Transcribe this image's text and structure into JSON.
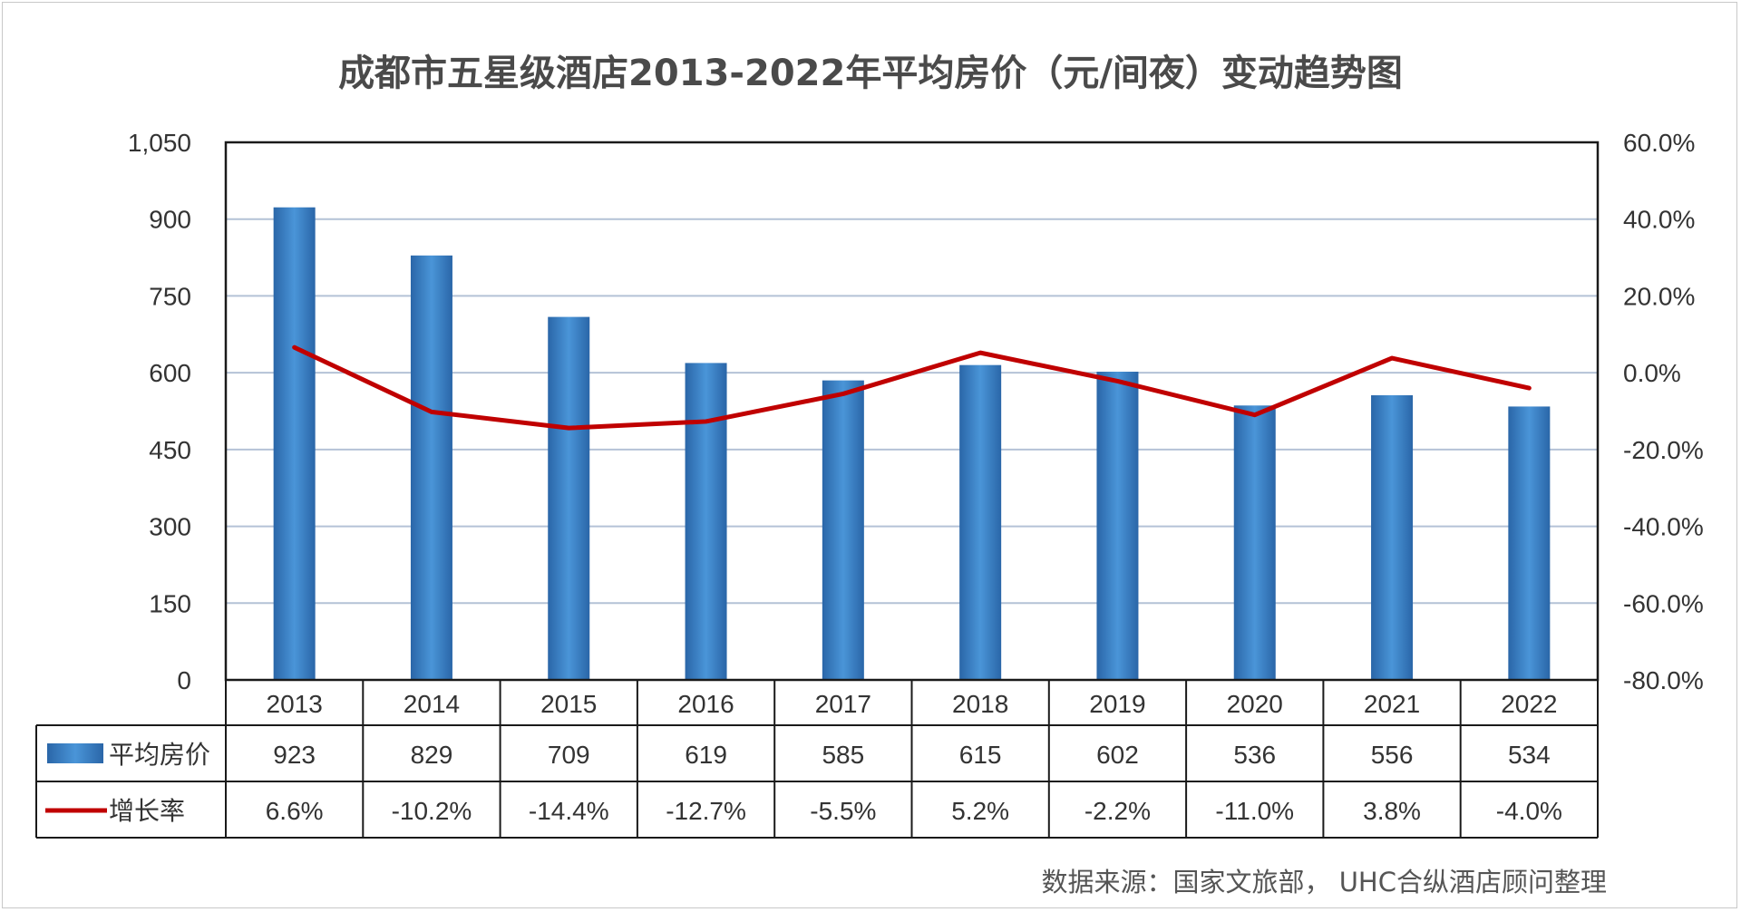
{
  "chart_data": {
    "type": "bar",
    "title": "成都市五星级酒店2013-2022年平均房价（元/间夜）变动趋势图",
    "categories": [
      "2013",
      "2014",
      "2015",
      "2016",
      "2017",
      "2018",
      "2019",
      "2020",
      "2021",
      "2022"
    ],
    "series": [
      {
        "name": "平均房价",
        "type": "bar",
        "axis": "left",
        "values": [
          923,
          829,
          709,
          619,
          585,
          615,
          602,
          536,
          556,
          534
        ],
        "labels": [
          "923",
          "829",
          "709",
          "619",
          "585",
          "615",
          "602",
          "536",
          "556",
          "534"
        ],
        "color": "#2f75b5"
      },
      {
        "name": "增长率",
        "type": "line",
        "axis": "right",
        "values": [
          6.6,
          -10.2,
          -14.4,
          -12.7,
          -5.5,
          5.2,
          -2.2,
          -11.0,
          3.8,
          -4.0
        ],
        "labels": [
          "6.6%",
          "-10.2%",
          "-14.4%",
          "-12.7%",
          "-5.5%",
          "5.2%",
          "-2.2%",
          "-11.0%",
          "3.8%",
          "-4.0%"
        ],
        "color": "#c00000"
      }
    ],
    "y_left": {
      "min": 0,
      "max": 1050,
      "ticks": [
        "0",
        "150",
        "300",
        "450",
        "600",
        "750",
        "900",
        "1,050"
      ]
    },
    "y_right": {
      "min": -80,
      "max": 60,
      "ticks": [
        "-80.0%",
        "-60.0%",
        "-40.0%",
        "-20.0%",
        "0.0%",
        "20.0%",
        "40.0%",
        "60.0%"
      ]
    },
    "grid": true,
    "legend": "data-table"
  },
  "source": "数据来源：国家文旅部， UHC合纵酒店顾问整理"
}
